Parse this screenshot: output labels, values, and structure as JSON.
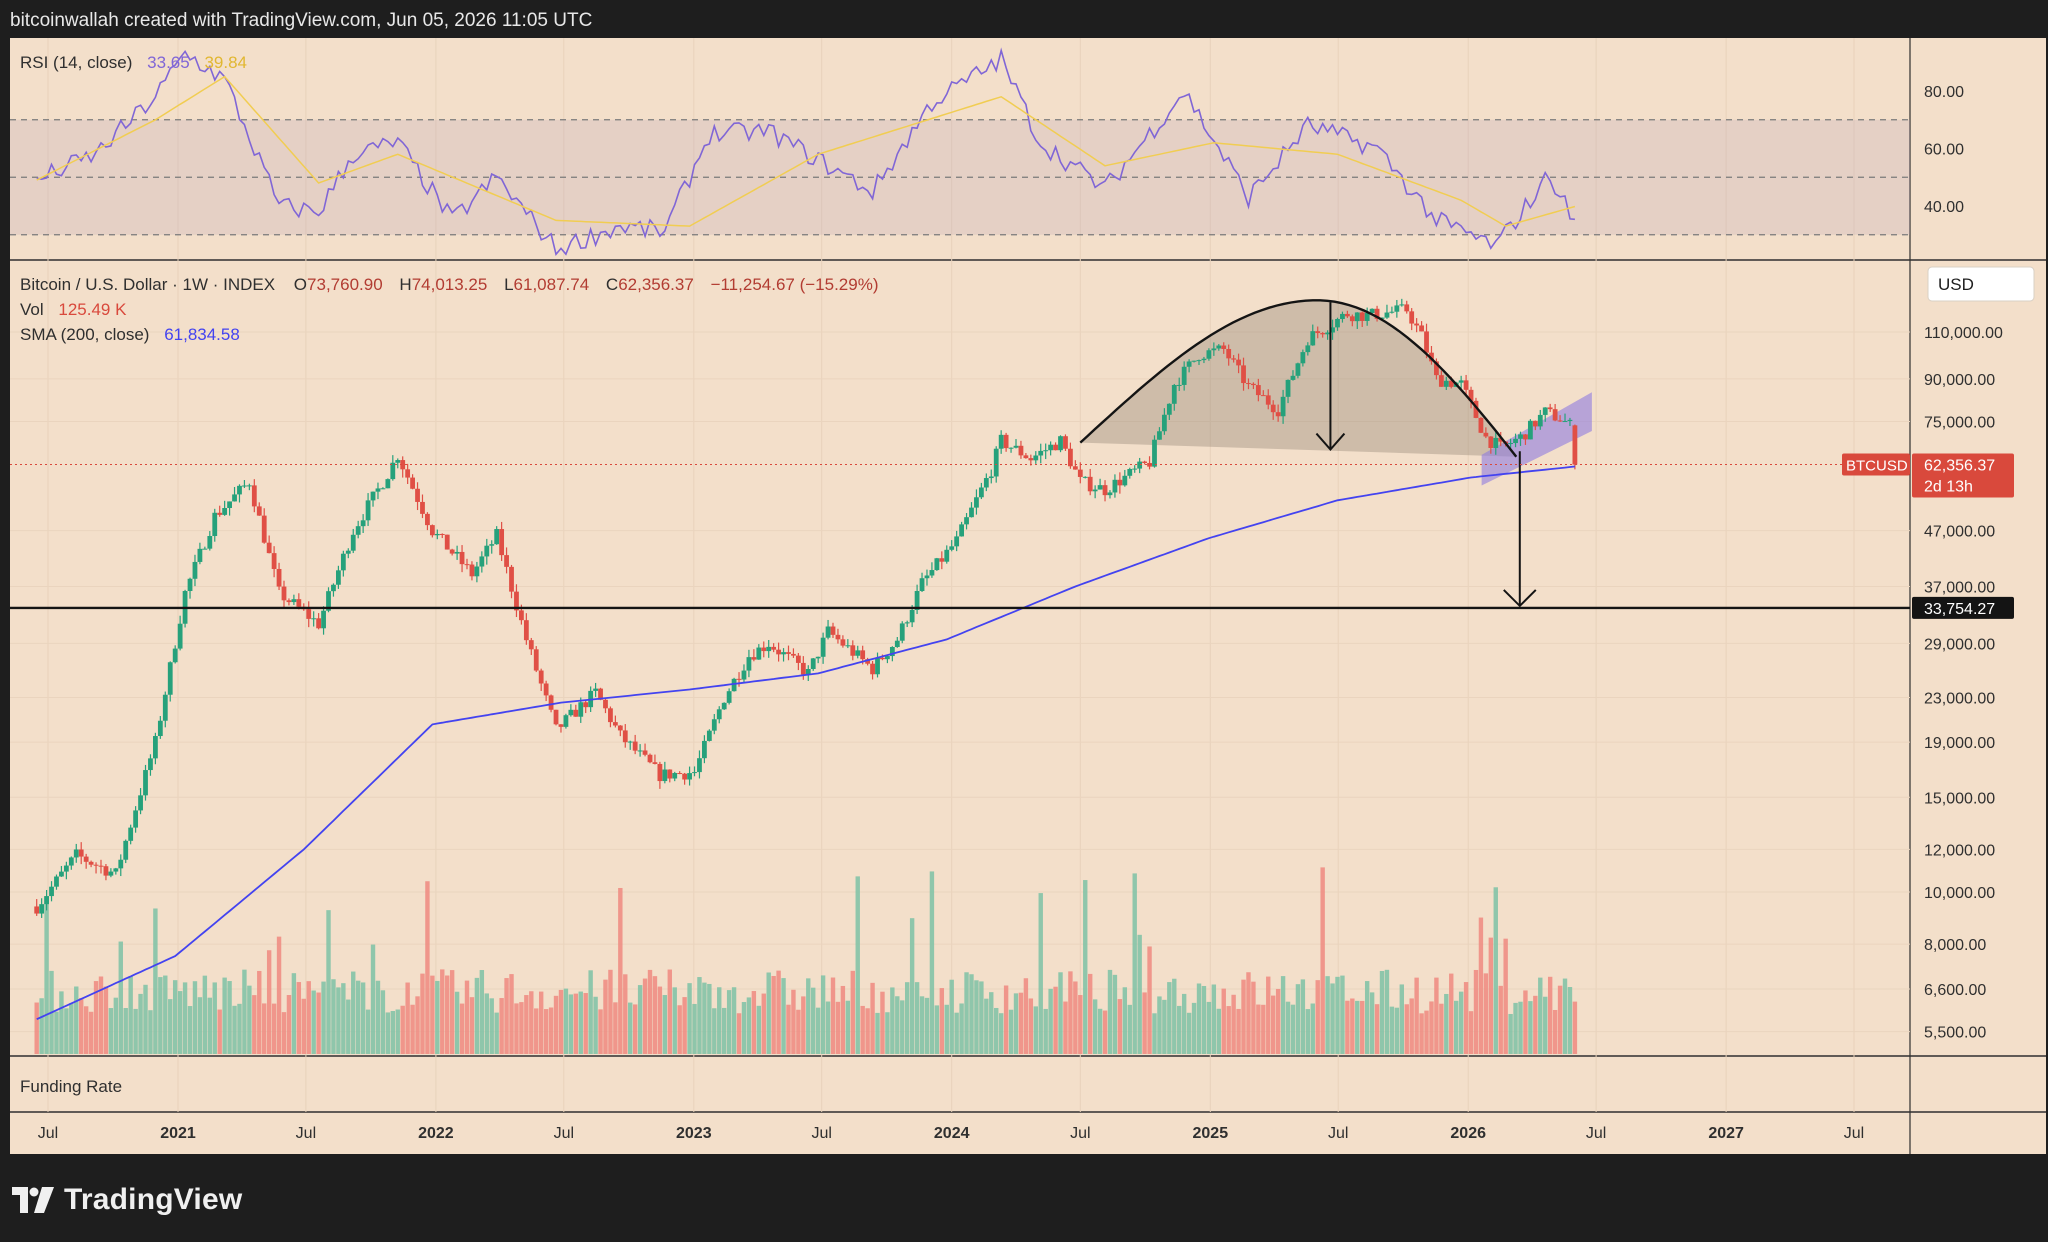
{
  "header": {
    "text": "bitcoinwallah created with TradingView.com, Jun 05, 2026 11:05 UTC"
  },
  "brand": {
    "name": "TradingView"
  },
  "colors": {
    "background": "#f3dfca",
    "up": "#26a17b",
    "down": "#e04f45",
    "volume_up": "#7cc2a6",
    "volume_down": "#ef8a80",
    "sma": "#4343f0",
    "rsi": "#8066d6",
    "rsi_ma": "#f1cd52",
    "pattern_fill": "#8a7a6c",
    "channel_fill": "#8f7be0",
    "price_tag": "#d9493c"
  },
  "rsi_panel": {
    "label": "RSI (14, close)",
    "rsi_value": "33.65",
    "ma_value": "39.84",
    "axis_ticks": [
      "80.00",
      "60.00",
      "40.00"
    ]
  },
  "price_panel": {
    "title": "Bitcoin / U.S. Dollar · 1W · INDEX",
    "ohlc": {
      "o_label": "O",
      "o": "73,760.90",
      "h_label": "H",
      "h": "74,013.25",
      "l_label": "L",
      "l": "61,087.74",
      "c_label": "C",
      "c": "62,356.37",
      "change": "−11,254.67 (−15.29%)"
    },
    "vol_label": "Vol",
    "vol_value": "125.49 K",
    "sma_label": "SMA (200, close)",
    "sma_value": "61,834.58",
    "currency": "USD",
    "symbol": "BTCUSD",
    "last_price": "62,356.37",
    "countdown": "2d 13h",
    "horizontal_level": "33,754.27"
  },
  "funding_panel": {
    "label": "Funding Rate"
  },
  "chart_data": {
    "type": "candlestick",
    "title": "",
    "x_ticks": [
      "Jul",
      "2021",
      "Jul",
      "2022",
      "Jul",
      "2023",
      "Jul",
      "2024",
      "Jul",
      "2025",
      "Jul",
      "2026",
      "Jul",
      "2027",
      "Jul"
    ],
    "y_scale": "log",
    "y_ticks": [
      "110,000.00",
      "90,000.00",
      "75,000.00",
      "47,000.00",
      "37,000.00",
      "29,000.00",
      "23,000.00",
      "19,000.00",
      "15,000.00",
      "12,000.00",
      "10,000.00",
      "8,000.00",
      "6,600.00",
      "5,500.00"
    ],
    "ylim": [
      4700,
      130000
    ],
    "anchors": [
      [
        "2020-06-15",
        9400
      ],
      [
        "2020-08-10",
        11700
      ],
      [
        "2020-10-05",
        10800
      ],
      [
        "2020-11-30",
        19000
      ],
      [
        "2021-01-11",
        36000
      ],
      [
        "2021-02-22",
        50000
      ],
      [
        "2021-04-12",
        58000
      ],
      [
        "2021-05-24",
        36000
      ],
      [
        "2021-07-19",
        31500
      ],
      [
        "2021-09-06",
        47000
      ],
      [
        "2021-10-25",
        60000
      ],
      [
        "2021-11-08",
        65000
      ],
      [
        "2021-12-27",
        47000
      ],
      [
        "2022-02-21",
        39000
      ],
      [
        "2022-03-28",
        46000
      ],
      [
        "2022-05-09",
        29500
      ],
      [
        "2022-06-20",
        20000
      ],
      [
        "2022-08-15",
        23500
      ],
      [
        "2022-09-19",
        19500
      ],
      [
        "2022-11-14",
        16500
      ],
      [
        "2023-01-02",
        16700
      ],
      [
        "2023-02-13",
        23000
      ],
      [
        "2023-03-20",
        27500
      ],
      [
        "2023-04-17",
        29000
      ],
      [
        "2023-06-12",
        25500
      ],
      [
        "2023-07-10",
        30500
      ],
      [
        "2023-09-11",
        26000
      ],
      [
        "2023-10-16",
        29500
      ],
      [
        "2023-11-20",
        37500
      ],
      [
        "2024-01-08",
        45000
      ],
      [
        "2024-02-26",
        61000
      ],
      [
        "2024-03-11",
        69000
      ],
      [
        "2024-04-22",
        64000
      ],
      [
        "2024-06-03",
        69000
      ],
      [
        "2024-07-01",
        58000
      ],
      [
        "2024-08-05",
        56000
      ],
      [
        "2024-10-07",
        63000
      ],
      [
        "2024-11-11",
        88000
      ],
      [
        "2024-12-16",
        100000
      ],
      [
        "2025-01-20",
        102000
      ],
      [
        "2025-02-24",
        87000
      ],
      [
        "2025-04-07",
        79000
      ],
      [
        "2025-05-19",
        107000
      ],
      [
        "2025-07-14",
        119000
      ],
      [
        "2025-08-11",
        118000
      ],
      [
        "2025-10-06",
        121000
      ],
      [
        "2025-10-27",
        108000
      ],
      [
        "2025-11-17",
        90000
      ],
      [
        "2025-12-22",
        88000
      ],
      [
        "2026-01-26",
        70000
      ],
      [
        "2026-02-16",
        67000
      ],
      [
        "2026-03-16",
        70000
      ],
      [
        "2026-04-20",
        78000
      ],
      [
        "2026-05-11",
        76000
      ],
      [
        "2026-05-25",
        73700
      ],
      [
        "2026-06-01",
        62356
      ]
    ],
    "sma_200": [
      [
        "2020-06-15",
        5800
      ],
      [
        "2020-12-28",
        7600
      ],
      [
        "2021-06-28",
        12000
      ],
      [
        "2021-12-27",
        20500
      ],
      [
        "2022-06-27",
        22500
      ],
      [
        "2022-12-26",
        23800
      ],
      [
        "2023-06-26",
        25500
      ],
      [
        "2023-12-25",
        29500
      ],
      [
        "2024-06-24",
        37000
      ],
      [
        "2024-12-30",
        45500
      ],
      [
        "2025-06-30",
        53500
      ],
      [
        "2026-01-05",
        59000
      ],
      [
        "2026-06-01",
        61835
      ]
    ],
    "rsi": [
      [
        "2020-06-15",
        49
      ],
      [
        "2020-09-07",
        58
      ],
      [
        "2020-11-30",
        78
      ],
      [
        "2021-01-11",
        93
      ],
      [
        "2021-03-08",
        84
      ],
      [
        "2021-05-24",
        40
      ],
      [
        "2021-07-19",
        38
      ],
      [
        "2021-09-06",
        58
      ],
      [
        "2021-11-08",
        62
      ],
      [
        "2022-01-24",
        35
      ],
      [
        "2022-03-28",
        50
      ],
      [
        "2022-06-20",
        25
      ],
      [
        "2022-09-19",
        33
      ],
      [
        "2022-11-21",
        31
      ],
      [
        "2023-01-23",
        65
      ],
      [
        "2023-04-17",
        66
      ],
      [
        "2023-09-11",
        45
      ],
      [
        "2023-12-04",
        76
      ],
      [
        "2024-03-11",
        91
      ],
      [
        "2024-05-06",
        62
      ],
      [
        "2024-08-05",
        46
      ],
      [
        "2024-11-25",
        80
      ],
      [
        "2025-02-24",
        43
      ],
      [
        "2025-05-19",
        68
      ],
      [
        "2025-08-25",
        60
      ],
      [
        "2025-11-17",
        35
      ],
      [
        "2026-02-09",
        26
      ],
      [
        "2026-04-27",
        51
      ],
      [
        "2026-06-01",
        33.65
      ]
    ],
    "rsi_ma": [
      [
        "2020-06-15",
        49
      ],
      [
        "2020-11-30",
        70
      ],
      [
        "2021-03-08",
        85
      ],
      [
        "2021-07-19",
        48
      ],
      [
        "2021-11-08",
        58
      ],
      [
        "2022-06-20",
        35
      ],
      [
        "2022-12-26",
        33
      ],
      [
        "2023-06-26",
        58
      ],
      [
        "2024-03-11",
        78
      ],
      [
        "2024-08-05",
        54
      ],
      [
        "2025-01-06",
        62
      ],
      [
        "2025-06-30",
        58
      ],
      [
        "2025-12-22",
        42
      ],
      [
        "2026-02-23",
        33
      ],
      [
        "2026-06-01",
        39.84
      ]
    ],
    "rsi_ylim": [
      20,
      100
    ],
    "rsi_levels": [
      70,
      50,
      30
    ],
    "horizontal_line": 33754.27
  }
}
